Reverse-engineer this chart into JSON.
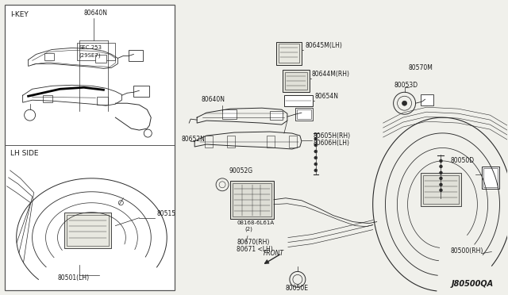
{
  "bg_color": "#f0f0eb",
  "border_color": "#555555",
  "line_color": "#2a2a2a",
  "text_color": "#1a1a1a",
  "diagram_id": "J80500QA",
  "figsize": [
    6.4,
    3.72
  ],
  "dpi": 100,
  "labels": {
    "ikey": "I-KEY",
    "lhside": "LH SIDE",
    "n80640_1": "80640N",
    "sec253": "SEC.253",
    "sec253b": "(29SE7)",
    "n80515": "80515",
    "n80501": "80501(LH)",
    "n80645": "80645M(LH)",
    "n80640_2": "80640N",
    "n80644": "80644M(RH)",
    "n80654": "80654N",
    "n80570": "80570M",
    "n80053": "80053D",
    "n80652": "80652N",
    "n80605": "80605H(RH)",
    "n80606": "80606H(LH)",
    "n90052": "90052G",
    "n08168": "08168-6L61A",
    "n08168b": "(2)",
    "n80670": "80670(RH)",
    "n80671": "80671 <LH)",
    "front": "FRONT",
    "n80050e": "80050E",
    "n80050d": "80050D",
    "n80500": "80500(RH)"
  }
}
